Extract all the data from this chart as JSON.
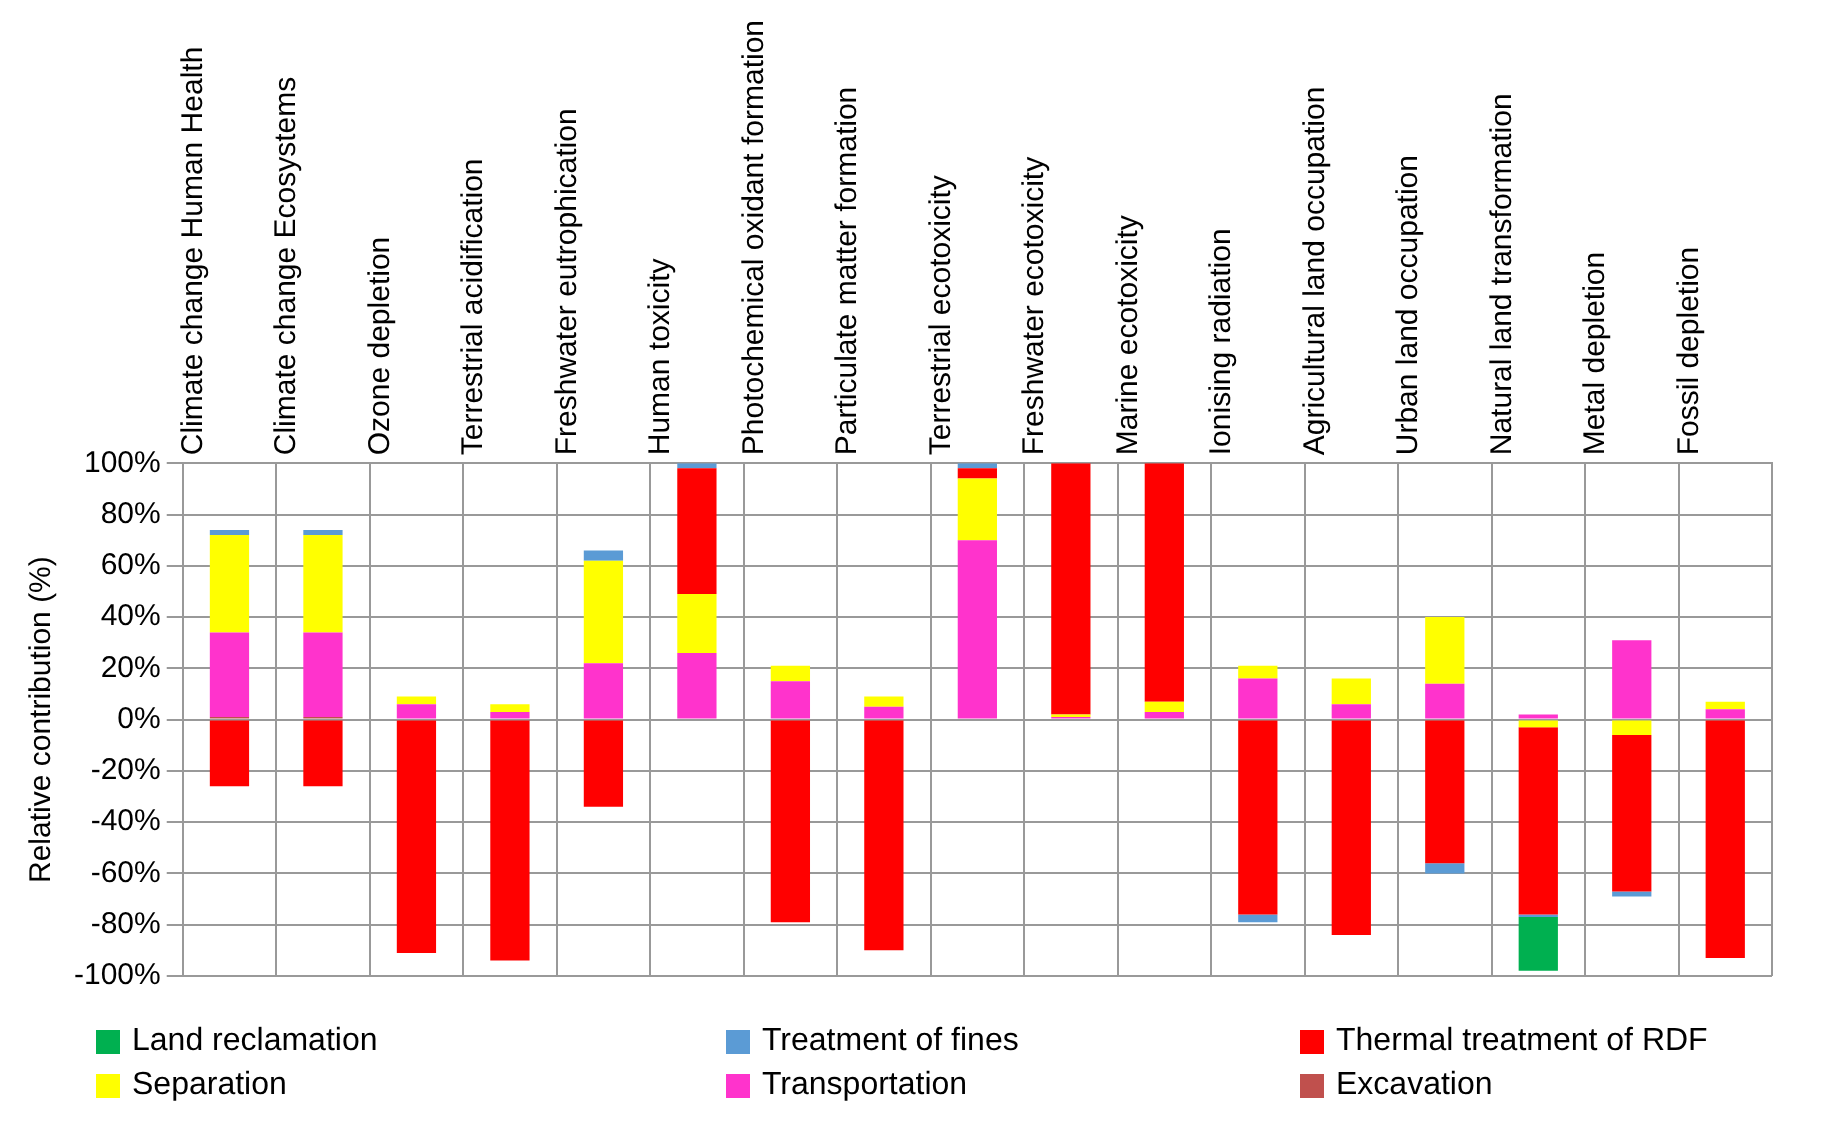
{
  "chart_data": {
    "type": "bar",
    "stacked": true,
    "ylabel": "Relative contribution (%)",
    "categories": [
      "Climate change Human Health",
      "Climate change Ecosystems",
      "Ozone depletion",
      "Terrestrial acidification",
      "Freshwater eutrophication",
      "Human toxicity",
      "Photochemical oxidant formation",
      "Particulate matter formation",
      "Terrestrial ecotoxicity",
      "Freshwater ecotoxicity",
      "Marine ecotoxicity",
      "Ionising radiation",
      "Agricultural land occupation",
      "Urban land occupation",
      "Natural land transformation",
      "Metal depletion",
      "Fossil depletion"
    ],
    "series": [
      {
        "name": "Excavation",
        "color": "#c0504d",
        "values": [
          1,
          1,
          0,
          0,
          0,
          0,
          0,
          0,
          0,
          0,
          0,
          0,
          0,
          0,
          0,
          0,
          0
        ]
      },
      {
        "name": "Transportation",
        "color": "#ff33cc",
        "values": [
          33,
          33,
          6,
          3,
          22,
          26,
          15,
          5,
          70,
          1,
          3,
          16,
          6,
          14,
          2,
          31,
          4
        ]
      },
      {
        "name": "Separation",
        "color": "#ffff00",
        "values": [
          38,
          38,
          3,
          3,
          40,
          23,
          6,
          4,
          24,
          1,
          4,
          5,
          10,
          26,
          -3,
          -6,
          3
        ]
      },
      {
        "name": "Thermal treatment of RDF",
        "color": "#ff0000",
        "values": [
          -26,
          -26,
          -91,
          -94,
          -34,
          49,
          -79,
          -90,
          4,
          98,
          93,
          -76,
          -84,
          -56,
          -73,
          -61,
          -93
        ]
      },
      {
        "name": "Treatment of fines",
        "color": "#5b9bd5",
        "values": [
          2,
          2,
          0,
          0,
          4,
          2,
          0,
          0,
          2,
          0,
          0,
          -3,
          0,
          -4,
          -1,
          -2,
          0
        ]
      },
      {
        "name": "Land reclamation",
        "color": "#00b050",
        "values": [
          0,
          0,
          0,
          0,
          0,
          0,
          0,
          0,
          0,
          0,
          0,
          0,
          0,
          0,
          -21,
          0,
          0
        ]
      }
    ],
    "ylim": [
      -100,
      100
    ],
    "yticks": [
      {
        "value": -100,
        "label": "-100%"
      },
      {
        "value": -80,
        "label": "-80%"
      },
      {
        "value": -60,
        "label": "-60%"
      },
      {
        "value": -40,
        "label": "-40%"
      },
      {
        "value": -20,
        "label": "-20%"
      },
      {
        "value": 0,
        "label": "0%"
      },
      {
        "value": 20,
        "label": "20%"
      },
      {
        "value": 40,
        "label": "40%"
      },
      {
        "value": 60,
        "label": "60%"
      },
      {
        "value": 80,
        "label": "80%"
      },
      {
        "value": 100,
        "label": "100%"
      }
    ],
    "grid": true,
    "legend": "bottom"
  }
}
